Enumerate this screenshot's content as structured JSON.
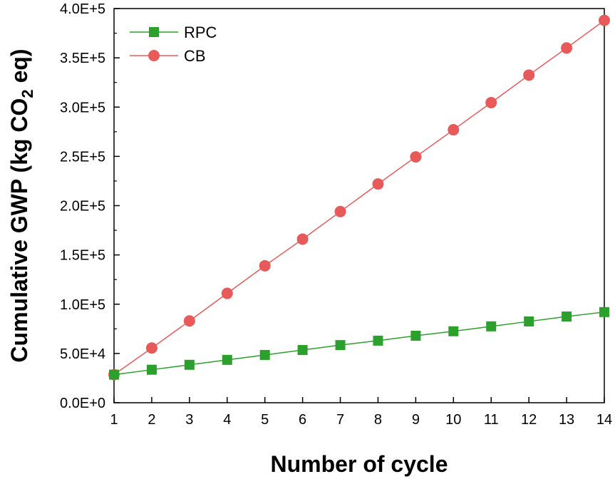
{
  "chart_data": {
    "type": "line",
    "xlabel": "Number of cycle",
    "ylabel_parts": [
      "Cumulative GWP (kg CO",
      "2",
      " eq)"
    ],
    "x": [
      1,
      2,
      3,
      4,
      5,
      6,
      7,
      8,
      9,
      10,
      11,
      12,
      13,
      14
    ],
    "xlim": [
      1,
      14
    ],
    "ylim": [
      0,
      400000
    ],
    "xticks": [
      1,
      2,
      3,
      4,
      5,
      6,
      7,
      8,
      9,
      10,
      11,
      12,
      13,
      14
    ],
    "yticks": [
      0,
      50000,
      100000,
      150000,
      200000,
      250000,
      300000,
      350000,
      400000
    ],
    "ytick_labels": [
      "0.0E+0",
      "5.0E+4",
      "1.0E+5",
      "1.5E+5",
      "2.0E+5",
      "2.5E+5",
      "3.0E+5",
      "3.5E+5",
      "4.0E+5"
    ],
    "grid": false,
    "legend_position": "top-left",
    "series": [
      {
        "name": "RPC",
        "marker": "square",
        "color": "#2ca02c",
        "values": [
          28500,
          33500,
          38500,
          43500,
          48500,
          53500,
          58500,
          63000,
          68000,
          72500,
          77500,
          82500,
          87500,
          92000
        ]
      },
      {
        "name": "CB",
        "marker": "circle",
        "color": "#e85a5a",
        "values": [
          28500,
          55500,
          83000,
          111000,
          139000,
          166000,
          194000,
          222000,
          249500,
          277000,
          304500,
          332500,
          360000,
          388000
        ]
      }
    ]
  }
}
